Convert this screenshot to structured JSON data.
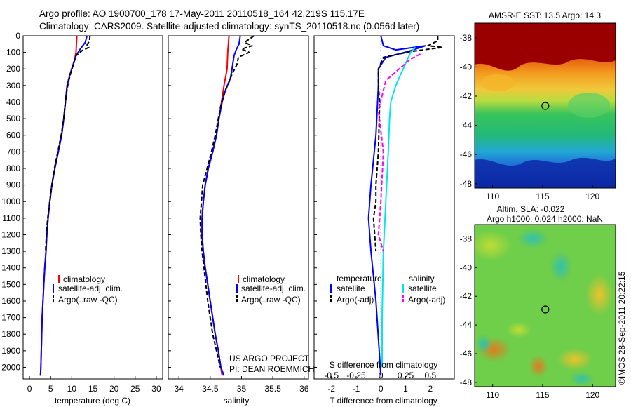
{
  "header": {
    "line1": "Argo profile: AO 1900700_178 17-May-2011 20110518_164 42.219S 115.17E",
    "line2": "Climatology: CARS2009. Satellite-adjusted climatology: synTS_20110518.nc (0.056d later)"
  },
  "depth_ticks": [
    "0",
    "100",
    "200",
    "300",
    "400",
    "500",
    "600",
    "700",
    "800",
    "900",
    "1000",
    "1100",
    "1200",
    "1300",
    "1400",
    "1500",
    "1600",
    "1700",
    "1800",
    "1900",
    "2000"
  ],
  "colors": {
    "climatology": "#ff0000",
    "satellite": "#0000ff",
    "argo": "#000000",
    "sat_salinity": "#00e5ee",
    "argo_salinity_adj": "#ff00ff"
  },
  "panels": {
    "temperature": {
      "xlabel": "temperature (deg C)",
      "xticks": [
        "0",
        "5",
        "10",
        "15",
        "20",
        "25",
        "30"
      ],
      "legend": [
        "climatology",
        "satellite-adj. clim.",
        "Argo(..raw -QC)"
      ]
    },
    "salinity": {
      "xlabel": "salinity",
      "xticks": [
        "34",
        "34.5",
        "35",
        "35.5",
        "36"
      ],
      "legend": [
        "climatology",
        "satellite-adj. clim.",
        "Argo(..raw -QC)"
      ],
      "credit1": "US ARGO PROJECT",
      "credit2": "PI: DEAN ROEMMICH"
    },
    "difference": {
      "xlabel": "T difference from climatology",
      "toplabel": "S difference from climatology",
      "xticks": [
        "-2",
        "-1",
        "0",
        "1",
        "2"
      ],
      "sticks": [
        "-0.5",
        "-0.25",
        "0",
        "0.25",
        "0.5"
      ],
      "legend_t_head": "temperature",
      "legend_s_head": "salinity",
      "legend_t": [
        "satellite",
        "Argo(-adj)"
      ],
      "legend_s": [
        "satellite",
        "Argo(-adj)"
      ]
    }
  },
  "maps": {
    "sst_title": "AMSR-E SST: 13.5 Argo: 14.3",
    "sla_title1": "Altim. SLA: -0.022",
    "sla_title2": "Argo h1000: 0.024 h2000: NaN",
    "lat_ticks": [
      "-38",
      "-40",
      "-42",
      "-44",
      "-46",
      "-48"
    ],
    "lon_ticks": [
      "110",
      "115",
      "120"
    ],
    "watermark": "©IMOS 28-Sep-2011 20:22:15"
  },
  "chart_data": [
    {
      "type": "line",
      "title": "",
      "xlabel": "temperature (deg C)",
      "ylabel": "",
      "xlim": [
        -1.5,
        31.5
      ],
      "ylim": [
        2070,
        0
      ],
      "series": [
        {
          "name": "climatology",
          "points": [
            [
              11.2,
              0
            ],
            [
              11.1,
              50
            ],
            [
              11.0,
              100
            ],
            [
              10.6,
              150
            ],
            [
              10.0,
              200
            ],
            [
              9.4,
              250
            ],
            [
              8.9,
              300
            ],
            [
              8.5,
              400
            ],
            [
              8.1,
              500
            ],
            [
              7.6,
              600
            ],
            [
              6.8,
              700
            ],
            [
              6.0,
              800
            ],
            [
              5.3,
              900
            ],
            [
              4.8,
              1000
            ],
            [
              4.4,
              1100
            ],
            [
              4.1,
              1200
            ],
            [
              3.9,
              1300
            ],
            [
              3.6,
              1400
            ],
            [
              3.4,
              1500
            ],
            [
              3.2,
              1600
            ],
            [
              3.0,
              1700
            ],
            [
              2.9,
              1800
            ],
            [
              2.8,
              1900
            ],
            [
              2.7,
              2000
            ],
            [
              2.6,
              2050
            ]
          ]
        },
        {
          "name": "satellite-adj. clim.",
          "points": [
            [
              13.6,
              0
            ],
            [
              13.2,
              40
            ],
            [
              12.0,
              80
            ],
            [
              11.0,
              120
            ],
            [
              10.5,
              160
            ],
            [
              10.0,
              200
            ],
            [
              9.4,
              250
            ],
            [
              8.9,
              300
            ],
            [
              8.5,
              400
            ],
            [
              8.1,
              500
            ],
            [
              7.6,
              600
            ],
            [
              6.8,
              700
            ],
            [
              6.0,
              800
            ],
            [
              5.3,
              900
            ],
            [
              4.8,
              1000
            ],
            [
              4.4,
              1100
            ],
            [
              4.1,
              1200
            ],
            [
              3.9,
              1300
            ],
            [
              3.6,
              1400
            ],
            [
              3.4,
              1500
            ],
            [
              3.2,
              1600
            ],
            [
              3.0,
              1700
            ],
            [
              2.9,
              1800
            ],
            [
              2.8,
              1900
            ],
            [
              2.7,
              2000
            ],
            [
              2.6,
              2050
            ]
          ]
        },
        {
          "name": "Argo(..raw -QC)",
          "points": [
            [
              14.3,
              0
            ],
            [
              14.2,
              30
            ],
            [
              13.6,
              55
            ],
            [
              14.0,
              70
            ],
            [
              12.4,
              90
            ],
            [
              11.0,
              120
            ],
            [
              10.4,
              170
            ],
            [
              9.8,
              220
            ],
            [
              9.3,
              270
            ],
            [
              8.9,
              320
            ],
            [
              8.5,
              400
            ],
            [
              8.1,
              500
            ],
            [
              7.5,
              600
            ],
            [
              6.7,
              700
            ],
            [
              5.9,
              800
            ],
            [
              5.3,
              900
            ],
            [
              4.8,
              1000
            ],
            [
              4.3,
              1100
            ],
            [
              4.0,
              1200
            ],
            [
              3.8,
              1300
            ]
          ]
        }
      ]
    },
    {
      "type": "line",
      "title": "",
      "xlabel": "salinity",
      "ylabel": "",
      "xlim": [
        33.83,
        36.07
      ],
      "ylim": [
        2070,
        0
      ],
      "series": [
        {
          "name": "climatology",
          "points": [
            [
              34.8,
              0
            ],
            [
              34.78,
              100
            ],
            [
              34.77,
              200
            ],
            [
              34.72,
              300
            ],
            [
              34.68,
              400
            ],
            [
              34.64,
              500
            ],
            [
              34.6,
              600
            ],
            [
              34.54,
              700
            ],
            [
              34.47,
              800
            ],
            [
              34.42,
              900
            ],
            [
              34.39,
              1000
            ],
            [
              34.37,
              1100
            ],
            [
              34.37,
              1200
            ],
            [
              34.39,
              1300
            ],
            [
              34.42,
              1400
            ],
            [
              34.46,
              1500
            ],
            [
              34.5,
              1600
            ],
            [
              34.54,
              1700
            ],
            [
              34.58,
              1800
            ],
            [
              34.63,
              1900
            ],
            [
              34.67,
              2000
            ],
            [
              34.69,
              2050
            ]
          ]
        },
        {
          "name": "satellite-adj. clim.",
          "points": [
            [
              34.98,
              0
            ],
            [
              34.96,
              50
            ],
            [
              34.92,
              80
            ],
            [
              34.88,
              120
            ],
            [
              34.86,
              170
            ],
            [
              34.84,
              220
            ],
            [
              34.82,
              260
            ],
            [
              34.75,
              320
            ],
            [
              34.69,
              400
            ],
            [
              34.64,
              500
            ],
            [
              34.6,
              600
            ],
            [
              34.54,
              700
            ],
            [
              34.47,
              800
            ],
            [
              34.42,
              900
            ],
            [
              34.39,
              1000
            ],
            [
              34.37,
              1100
            ],
            [
              34.37,
              1200
            ],
            [
              34.39,
              1300
            ],
            [
              34.42,
              1400
            ],
            [
              34.46,
              1500
            ],
            [
              34.5,
              1600
            ],
            [
              34.54,
              1700
            ],
            [
              34.58,
              1800
            ],
            [
              34.63,
              1900
            ],
            [
              34.67,
              2000
            ],
            [
              34.72,
              2050
            ]
          ]
        },
        {
          "name": "Argo(..raw -QC)",
          "points": [
            [
              35.2,
              0
            ],
            [
              35.05,
              40
            ],
            [
              35.17,
              60
            ],
            [
              35.0,
              80
            ],
            [
              35.12,
              100
            ],
            [
              34.95,
              130
            ],
            [
              34.93,
              170
            ],
            [
              34.85,
              230
            ],
            [
              34.8,
              280
            ],
            [
              34.72,
              350
            ],
            [
              34.67,
              420
            ],
            [
              34.63,
              500
            ],
            [
              34.58,
              600
            ],
            [
              34.52,
              700
            ],
            [
              34.45,
              800
            ],
            [
              34.38,
              900
            ],
            [
              34.36,
              1000
            ],
            [
              34.34,
              1100
            ],
            [
              34.35,
              1200
            ],
            [
              34.37,
              1300
            ],
            [
              34.4,
              1400
            ],
            [
              34.43,
              1500
            ],
            [
              34.46,
              1600
            ],
            [
              34.5,
              1700
            ],
            [
              34.54,
              1800
            ],
            [
              34.6,
              1900
            ],
            [
              34.66,
              2000
            ]
          ]
        }
      ]
    },
    {
      "type": "line",
      "title": "",
      "xlabel": "T difference from climatology",
      "ylabel": "",
      "xlim": [
        -2.7,
        2.97
      ],
      "ylim": [
        2070,
        0
      ],
      "series": [
        {
          "name": "satellite",
          "points": [
            [
              0.0,
              0
            ],
            [
              0.1,
              60
            ],
            [
              0.6,
              85
            ],
            [
              1.8,
              60
            ],
            [
              1.1,
              95
            ],
            [
              0.2,
              130
            ],
            [
              -0.1,
              200
            ],
            [
              -0.1,
              300
            ],
            [
              -0.2,
              600
            ],
            [
              -0.4,
              900
            ],
            [
              -0.5,
              1100
            ],
            [
              -0.4,
              1300
            ],
            [
              -0.2,
              1600
            ],
            [
              0,
              2050
            ]
          ]
        },
        {
          "name": "Argo(-adj)",
          "points": [
            [
              2.3,
              0
            ],
            [
              2.3,
              30
            ],
            [
              1.9,
              60
            ],
            [
              2.5,
              70
            ],
            [
              1.2,
              95
            ],
            [
              0.1,
              130
            ],
            [
              -0.1,
              200
            ],
            [
              -0.1,
              300
            ],
            [
              -0.05,
              400
            ],
            [
              -0.1,
              700
            ],
            [
              -0.2,
              900
            ],
            [
              -0.2,
              1000
            ],
            [
              -0.3,
              1100
            ],
            [
              -0.2,
              1300
            ]
          ]
        },
        {
          "name": "satellite (salinity)",
          "points": [
            [
              1.4,
              70
            ],
            [
              1.2,
              100
            ],
            [
              0.9,
              200
            ],
            [
              0.6,
              300
            ],
            [
              0.4,
              400
            ],
            [
              0.35,
              500
            ],
            [
              0.3,
              700
            ],
            [
              0.2,
              1000
            ],
            [
              0.1,
              1300
            ],
            [
              0.05,
              1700
            ],
            [
              0.05,
              2000
            ]
          ]
        },
        {
          "name": "Argo(-adj) (salinity)",
          "points": [
            [
              1.6,
              110
            ],
            [
              1.2,
              140
            ],
            [
              0.2,
              270
            ],
            [
              -0.1,
              450
            ],
            [
              0.1,
              700
            ],
            [
              0.0,
              1000
            ],
            [
              -0.1,
              1200
            ],
            [
              0.1,
              1300
            ]
          ]
        }
      ]
    }
  ]
}
